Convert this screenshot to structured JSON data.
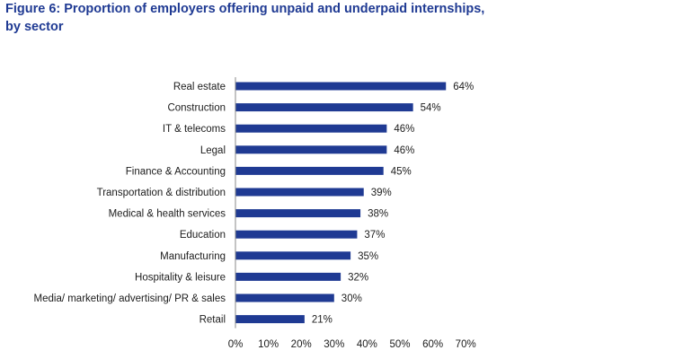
{
  "chart_data": {
    "type": "bar",
    "orientation": "horizontal",
    "title_line1": "Figure 6: Proportion of employers offering unpaid and underpaid internships,",
    "title_line2": "by sector",
    "categories": [
      "Real estate",
      "Construction",
      "IT & telecoms",
      "Legal",
      "Finance & Accounting",
      "Transportation & distribution",
      "Medical & health services",
      "Education",
      "Manufacturing",
      "Hospitality & leisure",
      "Media/ marketing/ advertising/ PR & sales",
      "Retail"
    ],
    "values": [
      64,
      54,
      46,
      46,
      45,
      39,
      38,
      37,
      35,
      32,
      30,
      21
    ],
    "value_labels": [
      "64%",
      "54%",
      "46%",
      "46%",
      "45%",
      "39%",
      "38%",
      "37%",
      "35%",
      "32%",
      "30%",
      "21%"
    ],
    "xlim": [
      0,
      70
    ],
    "xticks": [
      0,
      10,
      20,
      30,
      40,
      50,
      60,
      70
    ],
    "xtick_labels": [
      "0%",
      "10%",
      "20%",
      "30%",
      "40%",
      "50%",
      "60%",
      "70%"
    ],
    "grid": false,
    "legend": "none",
    "bar_color": "#1f3a93"
  }
}
